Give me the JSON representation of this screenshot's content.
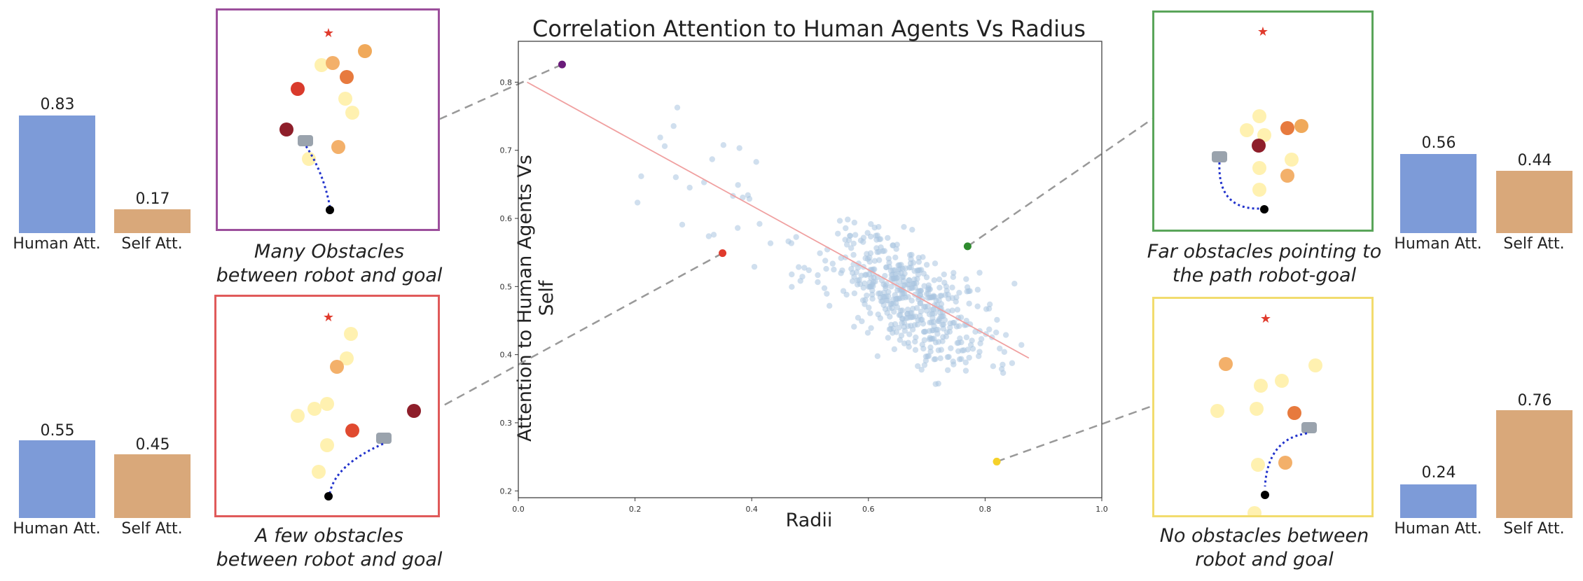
{
  "chart_data": {
    "type": "scatter",
    "title": "Correlation Attention to Human Agents Vs Radius",
    "xlabel": "Radii",
    "ylabel": "Attention to Human Agents Vs Self",
    "xlim": [
      0.0,
      1.0
    ],
    "ylim": [
      0.19,
      0.86
    ],
    "xticks": [
      "0.0",
      "0.2",
      "0.4",
      "0.6",
      "0.8",
      "1.0"
    ],
    "yticks": [
      "0.2",
      "0.3",
      "0.4",
      "0.5",
      "0.6",
      "0.7",
      "0.8"
    ],
    "grid": false,
    "trend_line": {
      "x": [
        0.015,
        0.875
      ],
      "y": [
        0.8,
        0.395
      ],
      "color": "#f0a0a0"
    },
    "point_color": "#a9c4e0",
    "highlighted": [
      {
        "x": 0.075,
        "y": 0.826,
        "color": "#6a1b7a"
      },
      {
        "x": 0.35,
        "y": 0.549,
        "color": "#e03a2c"
      },
      {
        "x": 0.77,
        "y": 0.559,
        "color": "#2e8b2e"
      },
      {
        "x": 0.82,
        "y": 0.243,
        "color": "#f5d12a"
      }
    ]
  },
  "bars": {
    "human_label": "Human Att.",
    "self_label": "Self Att.",
    "human_color": "#7d9bd8",
    "self_color": "#d9a87a",
    "sets": [
      {
        "human": 0.83,
        "self": 0.17,
        "human_text": "0.83",
        "self_text": "0.17"
      },
      {
        "human": 0.55,
        "self": 0.45,
        "human_text": "0.55",
        "self_text": "0.45"
      },
      {
        "human": 0.56,
        "self": 0.44,
        "human_text": "0.56",
        "self_text": "0.44"
      },
      {
        "human": 0.24,
        "self": 0.76,
        "human_text": "0.24",
        "self_text": "0.76"
      }
    ]
  },
  "captions": {
    "tl": [
      "Many Obstacles",
      "between robot and goal"
    ],
    "bl": [
      "A few obstacles",
      "between robot and goal"
    ],
    "tr": [
      "Far obstacles pointing to",
      "the path robot-goal"
    ],
    "br": [
      "No obstacles between",
      "robot and goal"
    ]
  },
  "panel_colors": {
    "tl": "#9c4f9c",
    "bl": "#e05a5a",
    "tr": "#5aa55a",
    "br": "#f2dc6e"
  }
}
